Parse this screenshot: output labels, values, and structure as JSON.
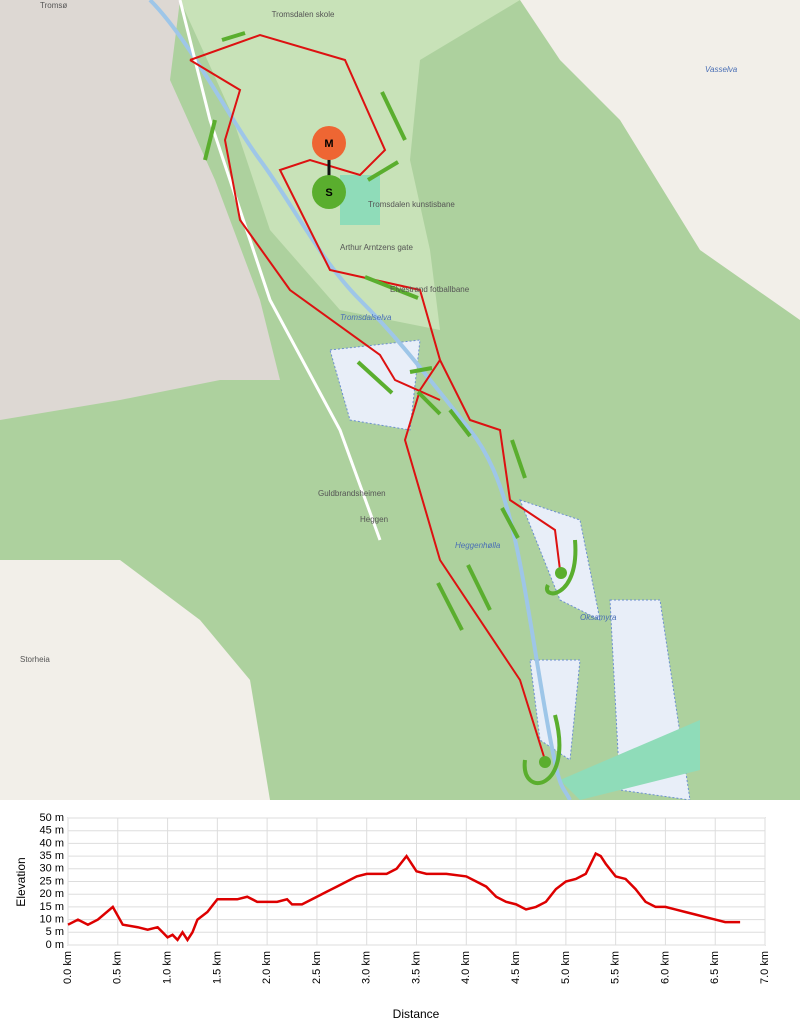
{
  "map": {
    "labels": [
      "Tromsø",
      "Tromsdalen skole",
      "Tromsdalen kunstisbane",
      "Arthur Arntzens gate",
      "Elvestrand fotballbane",
      "Tromsdalselva",
      "Guldbrandsheimen",
      "Heggen",
      "Heggenhølla",
      "Oksamyra",
      "Vasselva",
      "Storheia"
    ],
    "markers": [
      "M",
      "S"
    ]
  },
  "chart_data": {
    "type": "line",
    "color": "#dd0000",
    "grid": true,
    "xlabel": "Distance",
    "ylabel": "Elevation",
    "x": [
      0,
      0.1,
      0.2,
      0.3,
      0.45,
      0.55,
      0.7,
      0.8,
      0.9,
      0.95,
      1.0,
      1.05,
      1.1,
      1.15,
      1.2,
      1.25,
      1.3,
      1.4,
      1.5,
      1.7,
      1.8,
      1.9,
      2.1,
      2.2,
      2.25,
      2.35,
      2.5,
      2.6,
      2.7,
      2.8,
      2.9,
      3.0,
      3.2,
      3.3,
      3.4,
      3.5,
      3.6,
      3.7,
      3.8,
      4.0,
      4.1,
      4.2,
      4.3,
      4.4,
      4.5,
      4.6,
      4.7,
      4.8,
      4.9,
      5.0,
      5.1,
      5.2,
      5.3,
      5.35,
      5.4,
      5.5,
      5.6,
      5.7,
      5.8,
      5.9,
      6.0,
      6.1,
      6.2,
      6.3,
      6.4,
      6.5,
      6.6,
      6.75
    ],
    "values": [
      8,
      10,
      8,
      10,
      15,
      8,
      7,
      6,
      7,
      5,
      3,
      4,
      2,
      5,
      2,
      5,
      10,
      13,
      18,
      18,
      19,
      17,
      17,
      18,
      16,
      16,
      19,
      21,
      23,
      25,
      27,
      28,
      28,
      30,
      35,
      29,
      28,
      28,
      28,
      27,
      25,
      23,
      19,
      17,
      16,
      14,
      15,
      17,
      22,
      25,
      26,
      28,
      36,
      35,
      32,
      27,
      26,
      22,
      17,
      15,
      15,
      14,
      13,
      12,
      11,
      10,
      9,
      9
    ],
    "xlim": [
      0,
      7
    ],
    "ylim": [
      0,
      50
    ],
    "xticks": [
      {
        "value": 0,
        "label": "0.0 km"
      },
      {
        "value": 0.5,
        "label": "0.5 km"
      },
      {
        "value": 1,
        "label": "1.0 km"
      },
      {
        "value": 1.5,
        "label": "1.5 km"
      },
      {
        "value": 2,
        "label": "2.0 km"
      },
      {
        "value": 2.5,
        "label": "2.5 km"
      },
      {
        "value": 3,
        "label": "3.0 km"
      },
      {
        "value": 3.5,
        "label": "3.5 km"
      },
      {
        "value": 4,
        "label": "4.0 km"
      },
      {
        "value": 4.5,
        "label": "4.5 km"
      },
      {
        "value": 5,
        "label": "5.0 km"
      },
      {
        "value": 5.5,
        "label": "5.5 km"
      },
      {
        "value": 6,
        "label": "6.0 km"
      },
      {
        "value": 6.5,
        "label": "6.5 km"
      },
      {
        "value": 7,
        "label": "7.0 km"
      }
    ],
    "yticks": [
      {
        "value": 0,
        "label": "0 m"
      },
      {
        "value": 5,
        "label": "5 m"
      },
      {
        "value": 10,
        "label": "10 m"
      },
      {
        "value": 15,
        "label": "15 m"
      },
      {
        "value": 20,
        "label": "20 m"
      },
      {
        "value": 25,
        "label": "25 m"
      },
      {
        "value": 30,
        "label": "30 m"
      },
      {
        "value": 35,
        "label": "35 m"
      },
      {
        "value": 40,
        "label": "40 m"
      },
      {
        "value": 45,
        "label": "45 m"
      },
      {
        "value": 50,
        "label": "50 m"
      }
    ]
  }
}
